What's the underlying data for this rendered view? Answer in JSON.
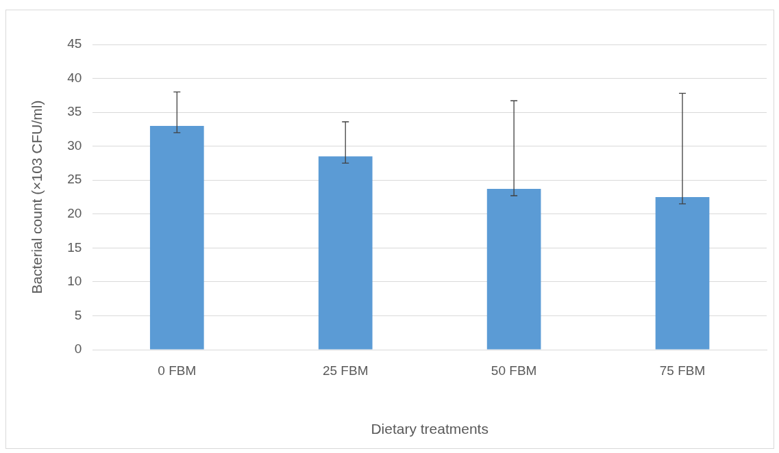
{
  "chart_data": {
    "type": "bar",
    "xlabel": "Dietary treatments",
    "ylabel": "Bacterial count (×103 CFU/ml)",
    "categories": [
      "0 FBM",
      "25 FBM",
      "50 FBM",
      "75 FBM"
    ],
    "values": [
      33,
      28.5,
      23.7,
      22.5
    ],
    "errors": [
      [
        32,
        38
      ],
      [
        27.5,
        33.6
      ],
      [
        22.7,
        36.7
      ],
      [
        21.5,
        37.8
      ]
    ],
    "color": "#5b9bd5",
    "ylim": [
      0,
      45
    ],
    "yticks": [
      0,
      5,
      10,
      15,
      20,
      25,
      30,
      35,
      40,
      45
    ],
    "grid": "y",
    "legend": false
  }
}
